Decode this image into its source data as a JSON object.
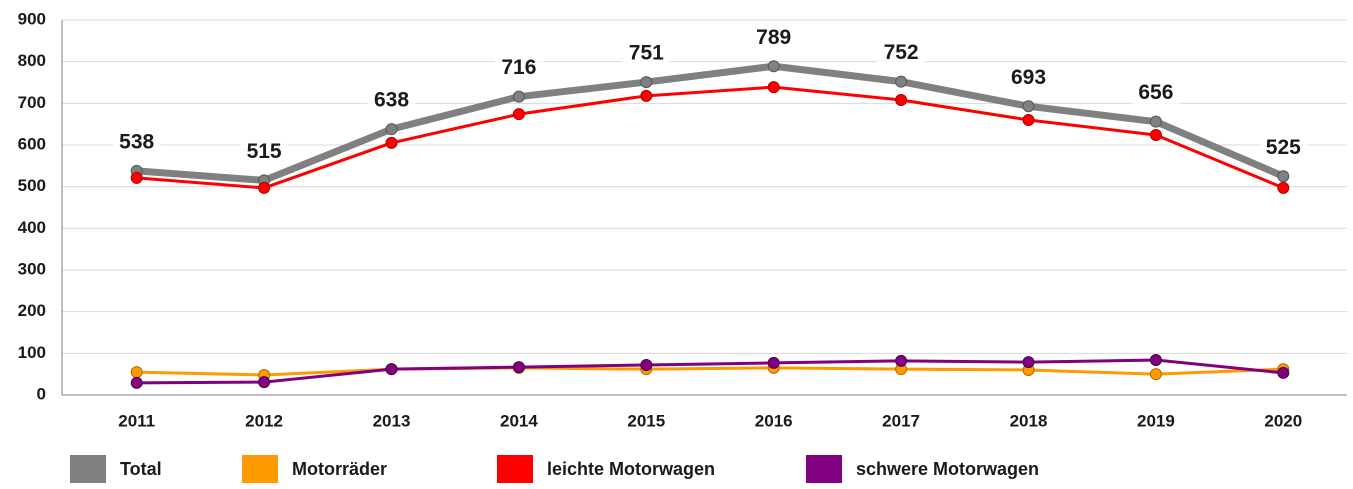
{
  "chart_data": {
    "type": "line",
    "categories": [
      "2011",
      "2012",
      "2013",
      "2014",
      "2015",
      "2016",
      "2017",
      "2018",
      "2019",
      "2020"
    ],
    "series": [
      {
        "name": "Total",
        "color": "#808080",
        "values": [
          538,
          515,
          638,
          716,
          751,
          789,
          752,
          693,
          656,
          525
        ]
      },
      {
        "name": "Motorräder",
        "color": "#ff9900",
        "values": [
          55,
          48,
          62,
          65,
          62,
          65,
          62,
          60,
          50,
          62
        ]
      },
      {
        "name": "leichte Motorwagen",
        "color": "#ff0000",
        "values": [
          521,
          497,
          605,
          674,
          718,
          739,
          708,
          660,
          624,
          497
        ]
      },
      {
        "name": "schwere Motorwagen",
        "color": "#800080",
        "values": [
          29,
          31,
          62,
          67,
          72,
          77,
          82,
          79,
          84,
          53
        ]
      }
    ],
    "ylim": [
      0,
      900
    ],
    "yticks": [
      0,
      100,
      200,
      300,
      400,
      500,
      600,
      700,
      800,
      900
    ],
    "grid": true
  }
}
